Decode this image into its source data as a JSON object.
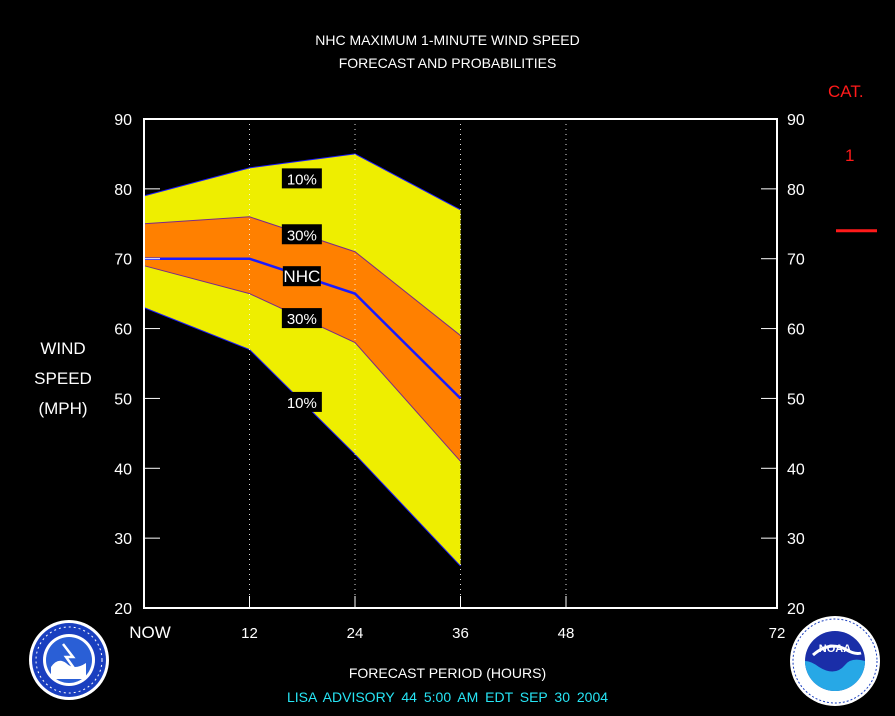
{
  "title_line1": "NHC MAXIMUM 1-MINUTE WIND SPEED",
  "title_line2": "FORECAST AND PROBABILITIES",
  "ylabel_lines": [
    "WIND",
    "SPEED",
    "(MPH)"
  ],
  "xlabel": "FORECAST PERIOD (HOURS)",
  "footer": "LISA   ADVISORY  44 5:00  AM  EDT  SEP 30  2004",
  "category": {
    "label": "CAT.",
    "value": "1"
  },
  "colors": {
    "background": "#000000",
    "outer_band": "#eeee00",
    "inner_band": "#ff8000",
    "nhc_line": "#1a1aff",
    "frame": "#ffffff",
    "footer_text": "#27e5f5",
    "category_text": "#ff1a1a"
  },
  "chart_data": {
    "type": "area",
    "x": [
      0,
      12,
      24,
      36
    ],
    "xlim": [
      0,
      72
    ],
    "ylim": [
      20,
      90
    ],
    "x_ticks": [
      0,
      12,
      24,
      36,
      48,
      72
    ],
    "x_tick_labels": [
      "NOW",
      "12",
      "24",
      "36",
      "48",
      "72"
    ],
    "y_ticks": [
      20,
      30,
      40,
      50,
      60,
      70,
      80,
      90
    ],
    "y_tick_labels": [
      "20",
      "30",
      "40",
      "50",
      "60",
      "70",
      "80",
      "90"
    ],
    "vertical_dotted_gridlines_at": [
      12,
      24,
      36,
      48
    ],
    "series": [
      {
        "name": "10%",
        "role": "upper",
        "values": [
          79,
          83,
          85,
          77
        ]
      },
      {
        "name": "30%",
        "role": "upper",
        "values": [
          75,
          76,
          71,
          59
        ]
      },
      {
        "name": "NHC",
        "role": "forecast",
        "values": [
          70,
          70,
          65,
          50
        ]
      },
      {
        "name": "30%",
        "role": "lower",
        "values": [
          69,
          65,
          58,
          41
        ]
      },
      {
        "name": "10%",
        "role": "lower",
        "values": [
          63,
          57,
          42,
          26
        ]
      }
    ],
    "band_labels": [
      {
        "text": "10%",
        "x": 17.5,
        "y": 81.5
      },
      {
        "text": "30%",
        "x": 17.5,
        "y": 73.5
      },
      {
        "text": "NHC",
        "x": 17.5,
        "y": 67.5
      },
      {
        "text": "30%",
        "x": 17.5,
        "y": 61.5
      },
      {
        "text": "10%",
        "x": 17.5,
        "y": 49.5
      }
    ],
    "category_threshold_mph": 74,
    "xlabel": "FORECAST PERIOD (HOURS)",
    "ylabel": "WIND SPEED (MPH)"
  }
}
